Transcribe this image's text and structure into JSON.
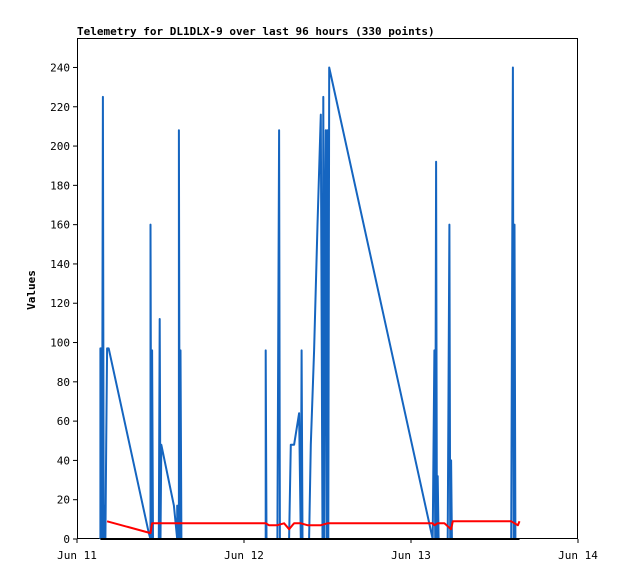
{
  "chart_data": {
    "type": "line",
    "title": "Telemetry for DL1DLX-9 over last 96 hours (330 points)",
    "xlabel": "",
    "ylabel": "Values",
    "xlim": [
      0,
      3
    ],
    "ylim": [
      0,
      255
    ],
    "x_ticks": [
      {
        "value": 0,
        "label": "Jun 11"
      },
      {
        "value": 1,
        "label": "Jun 12"
      },
      {
        "value": 2,
        "label": "Jun 13"
      },
      {
        "value": 3,
        "label": "Jun 14"
      }
    ],
    "y_ticks": [
      0,
      20,
      40,
      60,
      80,
      100,
      120,
      140,
      160,
      180,
      200,
      220,
      240
    ],
    "grid": false,
    "series": [
      {
        "color": "#1565c0",
        "points": [
          [
            0.14,
            0
          ],
          [
            0.14,
            97
          ],
          [
            0.15,
            97
          ],
          [
            0.15,
            0
          ],
          [
            0.155,
            225
          ],
          [
            0.16,
            0
          ],
          [
            0.165,
            17
          ],
          [
            0.17,
            0
          ],
          [
            0.175,
            48
          ],
          [
            0.18,
            97
          ],
          [
            0.19,
            97
          ],
          [
            0.43,
            3
          ],
          [
            0.44,
            0
          ],
          [
            0.44,
            160
          ],
          [
            0.445,
            0
          ],
          [
            0.45,
            96
          ],
          [
            0.455,
            0
          ],
          [
            0.49,
            0
          ],
          [
            0.495,
            112
          ],
          [
            0.5,
            0
          ],
          [
            0.505,
            48
          ],
          [
            0.58,
            17
          ],
          [
            0.6,
            0
          ],
          [
            0.6,
            0
          ],
          [
            0.6,
            17
          ],
          [
            0.61,
            0
          ],
          [
            0.61,
            208
          ],
          [
            0.615,
            0
          ],
          [
            0.62,
            96
          ],
          [
            0.625,
            0
          ],
          [
            1.13,
            0
          ],
          [
            1.13,
            96
          ],
          [
            1.135,
            0
          ],
          [
            1.2,
            0
          ],
          [
            1.21,
            208
          ],
          [
            1.215,
            0
          ],
          [
            1.26,
            0
          ],
          [
            1.27,
            0
          ],
          [
            1.28,
            48
          ],
          [
            1.29,
            48
          ],
          [
            1.3,
            48
          ],
          [
            1.33,
            64
          ],
          [
            1.34,
            0
          ],
          [
            1.345,
            96
          ],
          [
            1.35,
            0
          ],
          [
            1.39,
            0
          ],
          [
            1.4,
            48
          ],
          [
            1.42,
            96
          ],
          [
            1.44,
            160
          ],
          [
            1.46,
            216
          ],
          [
            1.47,
            0
          ],
          [
            1.475,
            225
          ],
          [
            1.48,
            0
          ],
          [
            1.485,
            160
          ],
          [
            1.49,
            208
          ],
          [
            1.495,
            0
          ],
          [
            1.5,
            208
          ],
          [
            1.505,
            0
          ],
          [
            1.51,
            240
          ],
          [
            2.13,
            0
          ],
          [
            2.14,
            96
          ],
          [
            2.145,
            0
          ],
          [
            2.15,
            192
          ],
          [
            2.155,
            0
          ],
          [
            2.16,
            32
          ],
          [
            2.165,
            0
          ],
          [
            2.22,
            0
          ],
          [
            2.23,
            160
          ],
          [
            2.235,
            0
          ],
          [
            2.24,
            40
          ],
          [
            2.245,
            0
          ],
          [
            2.6,
            0
          ],
          [
            2.61,
            240
          ],
          [
            2.615,
            0
          ],
          [
            2.62,
            160
          ],
          [
            2.625,
            0
          ]
        ]
      },
      {
        "color": "#ff0000",
        "points": [
          [
            0.18,
            9
          ],
          [
            0.44,
            3
          ],
          [
            0.45,
            8
          ],
          [
            0.5,
            8
          ],
          [
            0.6,
            8
          ],
          [
            0.62,
            8
          ],
          [
            1.0,
            8
          ],
          [
            1.13,
            8
          ],
          [
            1.15,
            7
          ],
          [
            1.2,
            7
          ],
          [
            1.24,
            8
          ],
          [
            1.27,
            5
          ],
          [
            1.29,
            7
          ],
          [
            1.3,
            8
          ],
          [
            1.34,
            8
          ],
          [
            1.38,
            7
          ],
          [
            1.4,
            7
          ],
          [
            1.46,
            7
          ],
          [
            1.5,
            8
          ],
          [
            2.13,
            8
          ],
          [
            2.14,
            7
          ],
          [
            2.16,
            8
          ],
          [
            2.2,
            8
          ],
          [
            2.24,
            5
          ],
          [
            2.25,
            9
          ],
          [
            2.6,
            9
          ],
          [
            2.62,
            8
          ],
          [
            2.64,
            7
          ],
          [
            2.65,
            9
          ]
        ]
      },
      {
        "color": "#000000",
        "points": [
          [
            0.14,
            0
          ],
          [
            2.65,
            0
          ]
        ]
      }
    ]
  }
}
